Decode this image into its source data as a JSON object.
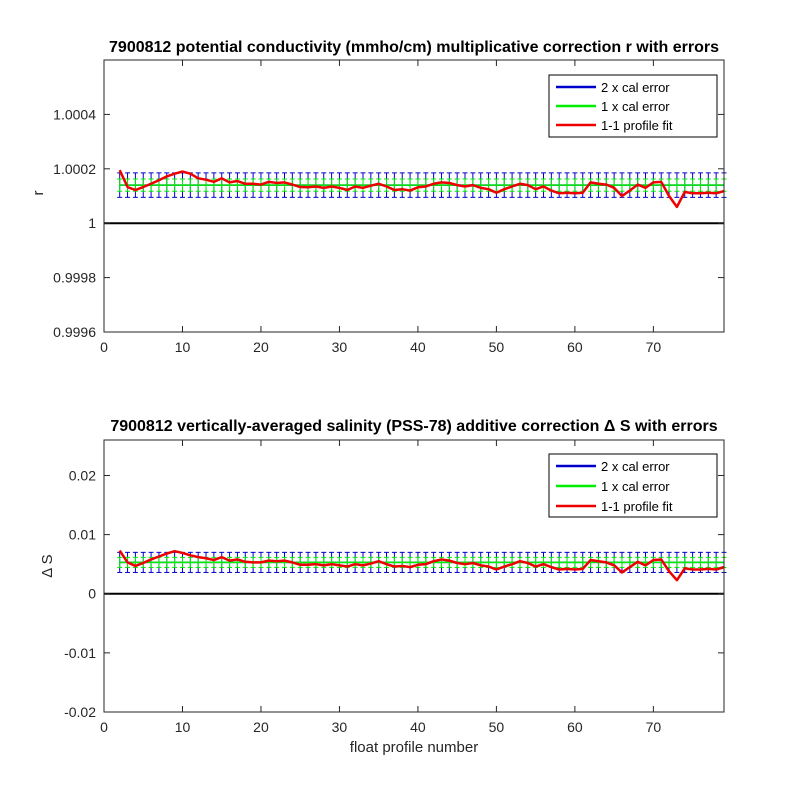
{
  "chart_data": [
    {
      "type": "line",
      "title": "7900812 potential conductivity (mmho/cm) multiplicative correction r with errors",
      "xlabel": "",
      "ylabel": "r",
      "xlim": [
        0,
        79
      ],
      "ylim": [
        0.9996,
        1.0006
      ],
      "xticks": [
        0,
        10,
        20,
        30,
        40,
        50,
        60,
        70
      ],
      "xtick_labels": [
        "0",
        "10",
        "20",
        "30",
        "40",
        "50",
        "60",
        "70"
      ],
      "yticks": [
        0.9996,
        0.9998,
        1,
        1.0002,
        1.0004
      ],
      "ytick_labels": [
        "0.9996",
        "0.9998",
        "1",
        "1.0002",
        "1.0004"
      ],
      "legend": {
        "position": "top-right",
        "entries": [
          {
            "label": "2 x cal error",
            "color": "#0000cc"
          },
          {
            "label": "1 x cal error",
            "color": "#00ee00"
          },
          {
            "label": "1-1 profile fit",
            "color": "#ee0000"
          }
        ]
      },
      "reference_line": 1,
      "x": [
        2,
        3,
        4,
        5,
        6,
        7,
        8,
        9,
        10,
        11,
        12,
        13,
        14,
        15,
        16,
        17,
        18,
        19,
        20,
        21,
        22,
        23,
        24,
        25,
        26,
        27,
        28,
        29,
        30,
        31,
        32,
        33,
        34,
        35,
        36,
        37,
        38,
        39,
        40,
        41,
        42,
        43,
        44,
        45,
        46,
        47,
        48,
        49,
        50,
        51,
        52,
        53,
        54,
        55,
        56,
        57,
        58,
        59,
        60,
        61,
        62,
        63,
        64,
        65,
        66,
        67,
        68,
        69,
        70,
        71,
        72,
        73,
        74,
        75,
        76,
        77,
        78,
        79
      ],
      "series": [
        {
          "name": "1-1 profile fit",
          "color": "#ee0000",
          "values": [
            1.000195,
            1.000133,
            1.000122,
            1.000133,
            1.000145,
            1.000158,
            1.000172,
            1.000182,
            1.00019,
            1.000182,
            1.000165,
            1.00016,
            1.000152,
            1.000165,
            1.00015,
            1.000155,
            1.000145,
            1.000145,
            1.000142,
            1.000152,
            1.000148,
            1.00015,
            1.000142,
            1.000133,
            1.000132,
            1.000135,
            1.00013,
            1.000135,
            1.00013,
            1.000122,
            1.000135,
            1.00013,
            1.000138,
            1.000145,
            1.000135,
            1.000122,
            1.000125,
            1.00012,
            1.000132,
            1.000135,
            1.000145,
            1.00015,
            1.000148,
            1.00014,
            1.000135,
            1.00014,
            1.00013,
            1.000125,
            1.000112,
            1.000125,
            1.000135,
            1.000145,
            1.00014,
            1.000125,
            1.000135,
            1.00012,
            1.00011,
            1.000112,
            1.00011,
            1.000112,
            1.00015,
            1.000145,
            1.000142,
            1.00013,
            1.0001,
            1.00012,
            1.000142,
            1.00013,
            1.00015,
            1.000152,
            1.0001,
            1.00006,
            1.000115,
            1.00011,
            1.00011,
            1.000112,
            1.00011,
            1.000118
          ]
        },
        {
          "name": "2 x cal error",
          "color": "#0000cc",
          "band_center": 1.00014,
          "band_halfwidth": 4.5e-05
        },
        {
          "name": "1 x cal error",
          "color": "#00ee00",
          "band_center": 1.00014,
          "band_halfwidth": 2.25e-05
        }
      ]
    },
    {
      "type": "line",
      "title": "7900812 vertically-averaged salinity (PSS-78) additive correction Δ S with errors",
      "xlabel": "float profile number",
      "ylabel": "Δ S",
      "xlim": [
        0,
        79
      ],
      "ylim": [
        -0.02,
        0.026
      ],
      "xticks": [
        0,
        10,
        20,
        30,
        40,
        50,
        60,
        70
      ],
      "xtick_labels": [
        "0",
        "10",
        "20",
        "30",
        "40",
        "50",
        "60",
        "70"
      ],
      "yticks": [
        -0.02,
        -0.01,
        0,
        0.01,
        0.02
      ],
      "ytick_labels": [
        "-0.02",
        "-0.01",
        "0",
        "0.01",
        "0.02"
      ],
      "legend": {
        "position": "top-right",
        "entries": [
          {
            "label": "2 x cal error",
            "color": "#0000cc"
          },
          {
            "label": "1 x cal error",
            "color": "#00ee00"
          },
          {
            "label": "1-1 profile fit",
            "color": "#ee0000"
          }
        ]
      },
      "reference_line": 0,
      "x": [
        2,
        3,
        4,
        5,
        6,
        7,
        8,
        9,
        10,
        11,
        12,
        13,
        14,
        15,
        16,
        17,
        18,
        19,
        20,
        21,
        22,
        23,
        24,
        25,
        26,
        27,
        28,
        29,
        30,
        31,
        32,
        33,
        34,
        35,
        36,
        37,
        38,
        39,
        40,
        41,
        42,
        43,
        44,
        45,
        46,
        47,
        48,
        49,
        50,
        51,
        52,
        53,
        54,
        55,
        56,
        57,
        58,
        59,
        60,
        61,
        62,
        63,
        64,
        65,
        66,
        67,
        68,
        69,
        70,
        71,
        72,
        73,
        74,
        75,
        76,
        77,
        78,
        79
      ],
      "series": [
        {
          "name": "1-1 profile fit",
          "color": "#ee0000",
          "values": [
            0.0073,
            0.0053,
            0.0047,
            0.0052,
            0.0058,
            0.0063,
            0.0068,
            0.0072,
            0.0069,
            0.0065,
            0.0062,
            0.006,
            0.0057,
            0.0062,
            0.0056,
            0.0058,
            0.0054,
            0.0053,
            0.0053,
            0.0056,
            0.0055,
            0.0056,
            0.0053,
            0.0049,
            0.0049,
            0.005,
            0.0048,
            0.005,
            0.0048,
            0.0046,
            0.005,
            0.0048,
            0.0051,
            0.0055,
            0.005,
            0.0046,
            0.0047,
            0.0045,
            0.0049,
            0.005,
            0.0055,
            0.0058,
            0.0056,
            0.0052,
            0.005,
            0.0052,
            0.0048,
            0.0046,
            0.0041,
            0.0046,
            0.005,
            0.0055,
            0.0052,
            0.0046,
            0.005,
            0.0045,
            0.0041,
            0.0042,
            0.0041,
            0.0042,
            0.0057,
            0.0055,
            0.0053,
            0.0048,
            0.0036,
            0.0045,
            0.0054,
            0.0048,
            0.0057,
            0.0058,
            0.0038,
            0.0023,
            0.0043,
            0.0041,
            0.0041,
            0.0042,
            0.0041,
            0.0045
          ]
        },
        {
          "name": "2 x cal error",
          "color": "#0000cc",
          "band_center": 0.0053,
          "band_halfwidth": 0.0017
        },
        {
          "name": "1 x cal error",
          "color": "#00ee00",
          "band_center": 0.0053,
          "band_halfwidth": 0.00085
        }
      ]
    }
  ]
}
